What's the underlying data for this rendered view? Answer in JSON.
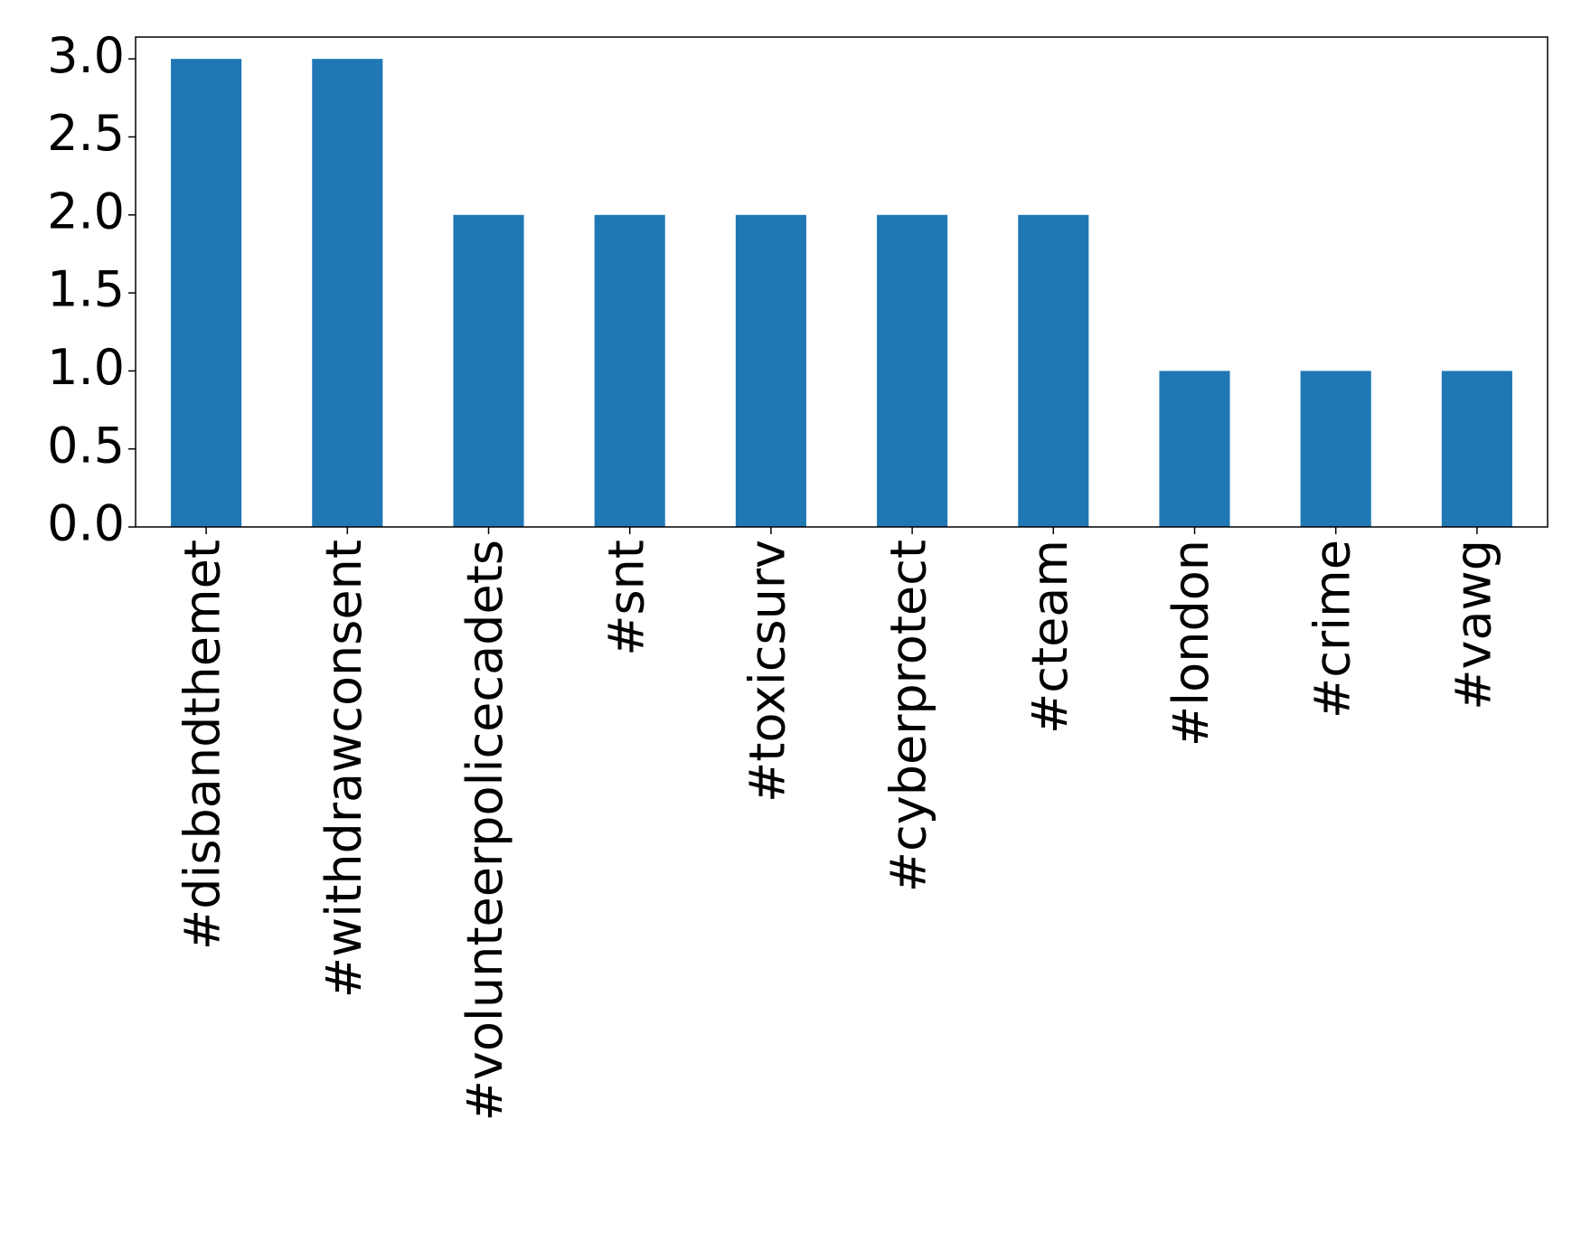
{
  "chart_data": {
    "type": "bar",
    "categories": [
      "#disbandthemet",
      "#withdrawconsent",
      "#volunteerpolicecadets",
      "#snt",
      "#toxicsurv",
      "#cyberprotect",
      "#cteam",
      "#london",
      "#crime",
      "#vawg"
    ],
    "values": [
      3,
      3,
      2,
      2,
      2,
      2,
      2,
      1,
      1,
      1
    ],
    "color": "#1f77b4",
    "ylim": [
      0,
      3.14
    ],
    "yticks": [
      {
        "value": 0,
        "label": "0.0"
      },
      {
        "value": 0.5,
        "label": "0.5"
      },
      {
        "value": 1,
        "label": "1.0"
      },
      {
        "value": 1.5,
        "label": "1.5"
      },
      {
        "value": 2,
        "label": "2.0"
      },
      {
        "value": 2.5,
        "label": "2.5"
      },
      {
        "value": 3,
        "label": "3.0"
      }
    ],
    "grid": false
  }
}
